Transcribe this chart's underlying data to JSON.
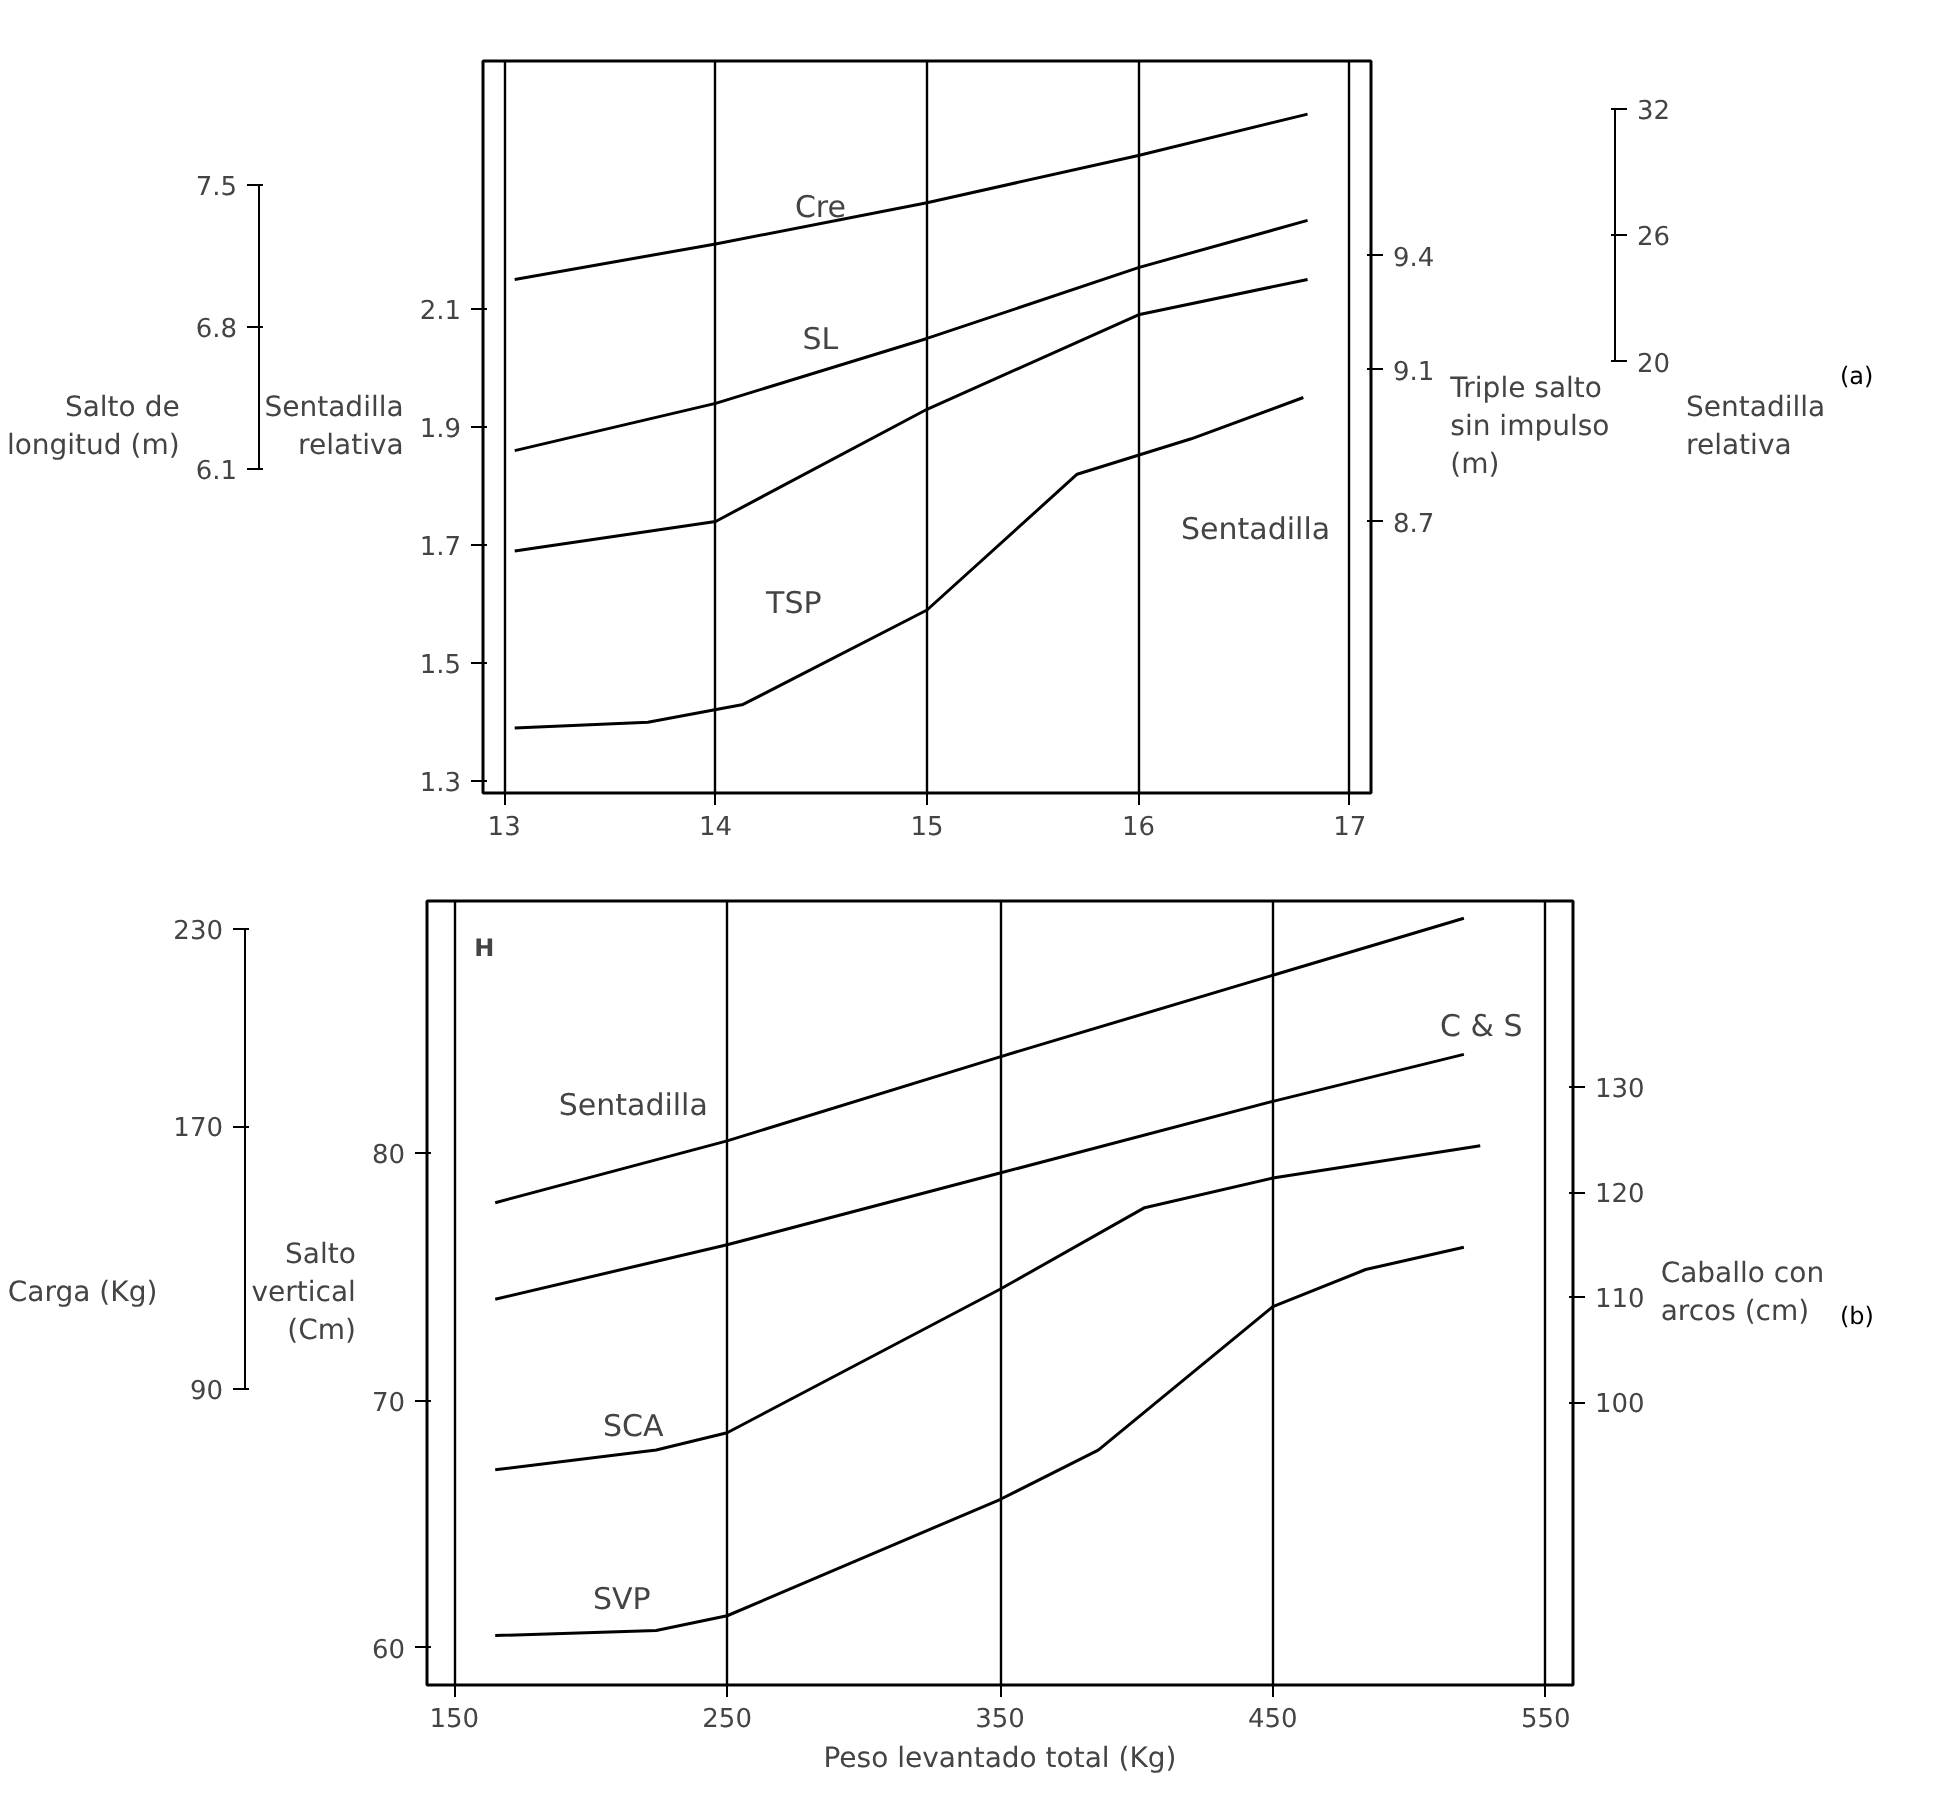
{
  "chart_data": [
    {
      "type": "line",
      "xlim": [
        12.9,
        17.1
      ],
      "xticks": [
        13,
        14,
        15,
        16,
        17
      ],
      "ylim": [
        1.28,
        2.52
      ],
      "yticks": [
        1.3,
        1.5,
        1.7,
        1.9,
        2.1
      ],
      "ylabel": "Sentadilla relativa",
      "y2lim": [
        7.985,
        9.913
      ],
      "y2ticks": [
        8.7,
        9.1,
        9.4
      ],
      "y2label": "Triple salto sin impulso (m)",
      "grid": "x",
      "series": [
        {
          "color": "#000000",
          "x": [
            13.05,
            14,
            15,
            16,
            16.8
          ],
          "values": [
            2.15,
            2.21,
            2.28,
            2.36,
            2.43
          ]
        },
        {
          "color": "#000000",
          "x": [
            13.05,
            14,
            15,
            16,
            16.8
          ],
          "values": [
            1.86,
            1.94,
            2.05,
            2.17,
            2.25
          ]
        },
        {
          "color": "#000000",
          "x": [
            13.05,
            14,
            15,
            16,
            16.8
          ],
          "values": [
            1.69,
            1.74,
            1.93,
            2.09,
            2.15
          ]
        },
        {
          "color": "#000000",
          "x": [
            13.05,
            13.68,
            14.13,
            15,
            15.71,
            16.25,
            16.78
          ],
          "values": [
            1.39,
            1.4,
            1.43,
            1.59,
            1.82,
            1.88,
            1.95
          ]
        }
      ],
      "annotations": [
        "Cre",
        "SL",
        "TSP",
        "Sentadilla",
        "Sentadilla relativa",
        "32",
        "26",
        "20",
        "Salto de longitud (m)",
        "7.5",
        "6.8",
        "6.1",
        "(a)"
      ]
    },
    {
      "type": "line",
      "xlim": [
        140,
        560
      ],
      "xticks": [
        150,
        250,
        350,
        450,
        550
      ],
      "ylim": [
        58.5,
        90.2
      ],
      "yticks": [
        60,
        70,
        80
      ],
      "ylabel": "Salto vertical (Cm)",
      "xlabel": "Peso levantado total (Kg)",
      "y2lim": [
        73.1,
        147.7
      ],
      "y2ticks": [
        100,
        110,
        120,
        130
      ],
      "y2label": "Caballo con arcos (cm)",
      "y3lim": [
        -0.15,
        238.6
      ],
      "y3ticks": [
        90,
        170,
        230
      ],
      "y3label": "Carga (Kg)",
      "grid": "x",
      "series": [
        {
          "color": "#000000",
          "x": [
            165,
            250,
            350,
            450,
            520
          ],
          "values": [
            78.0,
            80.5,
            83.9,
            87.2,
            89.5
          ]
        },
        {
          "color": "#000000",
          "x": [
            165,
            250,
            350,
            450,
            520
          ],
          "values": [
            74.1,
            76.3,
            79.2,
            82.1,
            84.0
          ]
        },
        {
          "color": "#000000",
          "x": [
            165,
            224,
            250,
            350,
            403,
            450,
            526
          ],
          "values": [
            67.2,
            68.0,
            68.7,
            74.5,
            77.8,
            79.0,
            80.3
          ]
        },
        {
          "color": "#000000",
          "x": [
            165,
            224,
            250,
            350,
            386,
            450,
            484,
            520
          ],
          "values": [
            60.5,
            60.7,
            61.3,
            66.0,
            68.0,
            73.8,
            75.3,
            76.2
          ]
        }
      ],
      "annotations": [
        "Sentadilla",
        "C & S",
        "SCA",
        "SVP",
        "H",
        "(b)"
      ]
    }
  ]
}
